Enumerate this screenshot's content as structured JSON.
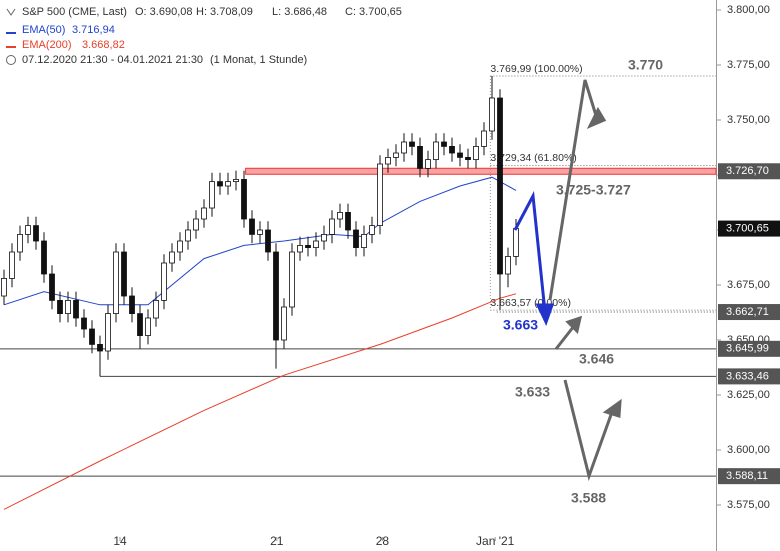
{
  "chart_data": {
    "type": "candlestick",
    "title": "S&P 500 (CME, Last)",
    "ohlc_labels": [
      "O: 3.690,08",
      "H: 3.708,09",
      "L: 3.686,48",
      "C: 3.700,65"
    ],
    "period": "07.12.2020 21:30 - 04.01.2021 21:30",
    "interval": "(1 Monat, 1 Stunde)",
    "xlim": [
      -0.5,
      89
    ],
    "xticks": [
      {
        "value": 14.5,
        "label": "14"
      },
      {
        "value": 34.1,
        "label": "21"
      },
      {
        "value": 47.3,
        "label": "28"
      },
      {
        "value": 61.4,
        "label": "Jan '21"
      }
    ],
    "ylim": [
      3554.09,
      3804.55
    ],
    "yticks": [
      {
        "value": 3575,
        "label": "3.575,00"
      },
      {
        "value": 3600,
        "label": "3.600,00"
      },
      {
        "value": 3625,
        "label": "3.625,00"
      },
      {
        "value": 3650,
        "label": "3.650,00"
      },
      {
        "value": 3675,
        "label": "3.675,00"
      },
      {
        "value": 3700,
        "label": "3.700,00"
      },
      {
        "value": 3725,
        "label": "3.725,00"
      },
      {
        "value": 3750,
        "label": "3.750,00"
      },
      {
        "value": 3775,
        "label": "3.775,00"
      },
      {
        "value": 3800,
        "label": "3.800,00"
      }
    ],
    "candles": {
      "x": [
        0,
        1,
        2,
        3,
        4,
        5,
        6,
        7,
        8,
        9,
        10,
        11,
        12,
        13,
        14,
        15,
        16,
        17,
        18,
        19,
        20,
        21,
        22,
        23,
        24,
        25,
        26,
        27,
        28,
        29,
        30,
        31,
        32,
        33,
        34,
        35,
        36,
        37,
        38,
        39,
        40,
        41,
        42,
        43,
        44,
        45,
        46,
        47,
        48,
        49,
        50,
        51,
        52,
        53,
        54,
        55,
        56,
        57,
        58,
        59,
        60,
        61,
        62,
        63,
        64
      ],
      "open": [
        3670,
        3678,
        3690,
        3698,
        3702,
        3695,
        3680,
        3668,
        3662,
        3668,
        3660,
        3655,
        3648,
        3645,
        3662,
        3690,
        3670,
        3662,
        3652,
        3660,
        3668,
        3685,
        3690,
        3695,
        3700,
        3705,
        3710,
        3722,
        3720,
        3722,
        3723,
        3705,
        3698,
        3700,
        3690,
        3650,
        3665,
        3690,
        3693,
        3692,
        3695,
        3698,
        3705,
        3708,
        3700,
        3692,
        3698,
        3702,
        3730,
        3733,
        3735,
        3740,
        3738,
        3728,
        3732,
        3740,
        3738,
        3735,
        3733,
        3732,
        3738,
        3745,
        3760,
        3680,
        3688
      ],
      "high": [
        3682,
        3694,
        3702,
        3706,
        3706,
        3699,
        3684,
        3672,
        3672,
        3672,
        3664,
        3659,
        3652,
        3666,
        3694,
        3694,
        3674,
        3666,
        3664,
        3672,
        3689,
        3694,
        3699,
        3704,
        3709,
        3714,
        3726,
        3726,
        3726,
        3727,
        3727,
        3709,
        3704,
        3704,
        3694,
        3669,
        3694,
        3697,
        3697,
        3699,
        3702,
        3709,
        3712,
        3712,
        3704,
        3702,
        3706,
        3734,
        3737,
        3739,
        3744,
        3744,
        3742,
        3736,
        3744,
        3744,
        3742,
        3739,
        3737,
        3742,
        3749,
        3769.99,
        3764,
        3692,
        3705
      ],
      "low": [
        3666,
        3674,
        3686,
        3694,
        3691,
        3676,
        3664,
        3658,
        3658,
        3656,
        3651,
        3644,
        3633.46,
        3641,
        3658,
        3666,
        3658,
        3646,
        3648,
        3656,
        3664,
        3681,
        3686,
        3691,
        3696,
        3701,
        3706,
        3716,
        3716,
        3718,
        3701,
        3694,
        3694,
        3686,
        3637,
        3646,
        3661,
        3686,
        3688,
        3688,
        3691,
        3694,
        3701,
        3696,
        3688,
        3688,
        3694,
        3698,
        3726,
        3729,
        3731,
        3734,
        3724,
        3724,
        3728,
        3734,
        3731,
        3729,
        3728,
        3728,
        3734,
        3741,
        3663.57,
        3674,
        3684
      ],
      "close": [
        3678,
        3690,
        3698,
        3702,
        3695,
        3680,
        3668,
        3662,
        3668,
        3660,
        3655,
        3648,
        3645,
        3662,
        3690,
        3670,
        3662,
        3652,
        3660,
        3668,
        3685,
        3690,
        3695,
        3700,
        3705,
        3710,
        3722,
        3720,
        3722,
        3723,
        3705,
        3698,
        3700,
        3690,
        3650,
        3665,
        3690,
        3693,
        3692,
        3695,
        3698,
        3705,
        3708,
        3700,
        3692,
        3698,
        3702,
        3730,
        3733,
        3735,
        3740,
        3738,
        3728,
        3732,
        3740,
        3738,
        3735,
        3733,
        3732,
        3738,
        3745,
        3760,
        3680,
        3688,
        3700.65
      ]
    },
    "series": [
      {
        "name": "EMA(50)",
        "value_label": "3.716,94",
        "color": "#2244cc",
        "x": [
          0,
          5,
          12,
          18,
          25,
          30,
          35,
          41,
          45,
          47,
          52,
          57,
          61,
          64
        ],
        "values": [
          3666,
          3672,
          3666,
          3666,
          3687,
          3693,
          3695,
          3698,
          3697,
          3703,
          3713,
          3720,
          3724,
          3718
        ]
      },
      {
        "name": "EMA(200)",
        "value_label": "3.668,82",
        "color": "#e8402a",
        "x": [
          0,
          12,
          25,
          35,
          47,
          56,
          62,
          64
        ],
        "values": [
          3573,
          3595,
          3618,
          3634,
          3648,
          3660,
          3669,
          3671
        ]
      }
    ],
    "levels": [
      {
        "value": 3726.7,
        "label": "3.726,70"
      },
      {
        "value": 3700.65,
        "label": "3.700,65"
      },
      {
        "value": 3662.71,
        "label": "3.662,71"
      },
      {
        "value": 3645.99,
        "label": "3.645,99"
      },
      {
        "value": 3633.46,
        "label": "3.633,46"
      },
      {
        "value": 3588.11,
        "label": "3.588,11"
      }
    ],
    "fib_levels": [
      {
        "value": 3769.99,
        "label": "3.769,99 (100.00%)"
      },
      {
        "value": 3729.34,
        "label": "3.729,34 (61.80%)"
      },
      {
        "value": 3663.57,
        "label": "3.663,57 (0.00%)"
      }
    ],
    "annotations": [
      "3.770",
      "3.725-3.727",
      "3.663",
      "3.646",
      "3.633",
      "3.588"
    ]
  }
}
